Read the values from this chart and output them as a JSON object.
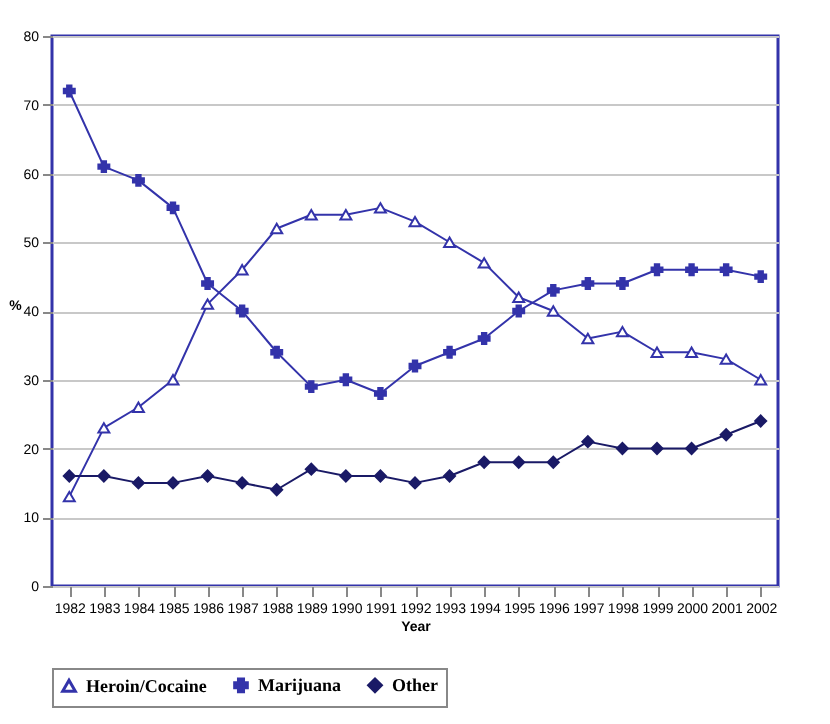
{
  "chart_data": {
    "type": "line",
    "xlabel": "Year",
    "ylabel": "%",
    "categories": [
      "1982",
      "1983",
      "1984",
      "1985",
      "1986",
      "1987",
      "1988",
      "1989",
      "1990",
      "1991",
      "1992",
      "1993",
      "1994",
      "1995",
      "1996",
      "1997",
      "1998",
      "1999",
      "2000",
      "2001",
      "2002"
    ],
    "series": [
      {
        "name": "Heroin/Cocaine",
        "color": "#3333aa",
        "marker": "triangle",
        "values": [
          13,
          23,
          26,
          30,
          41,
          46,
          52,
          54,
          54,
          55,
          53,
          50,
          47,
          42,
          40,
          36,
          37,
          34,
          34,
          33,
          30
        ]
      },
      {
        "name": "Marijuana",
        "color": "#3333aa",
        "marker": "cross",
        "values": [
          72,
          61,
          59,
          55,
          44,
          40,
          34,
          29,
          30,
          28,
          32,
          34,
          36,
          40,
          43,
          44,
          44,
          46,
          46,
          46,
          45
        ]
      },
      {
        "name": "Other",
        "color": "#1a1a66",
        "marker": "diamond",
        "values": [
          16,
          16,
          15,
          15,
          16,
          15,
          14,
          17,
          16,
          16,
          15,
          16,
          18,
          18,
          18,
          21,
          20,
          20,
          20,
          22,
          24
        ]
      }
    ],
    "ylim": [
      0,
      80
    ],
    "yticks": [
      0,
      10,
      20,
      30,
      40,
      50,
      60,
      70,
      80
    ],
    "grid": "y",
    "legend": "bottom"
  }
}
